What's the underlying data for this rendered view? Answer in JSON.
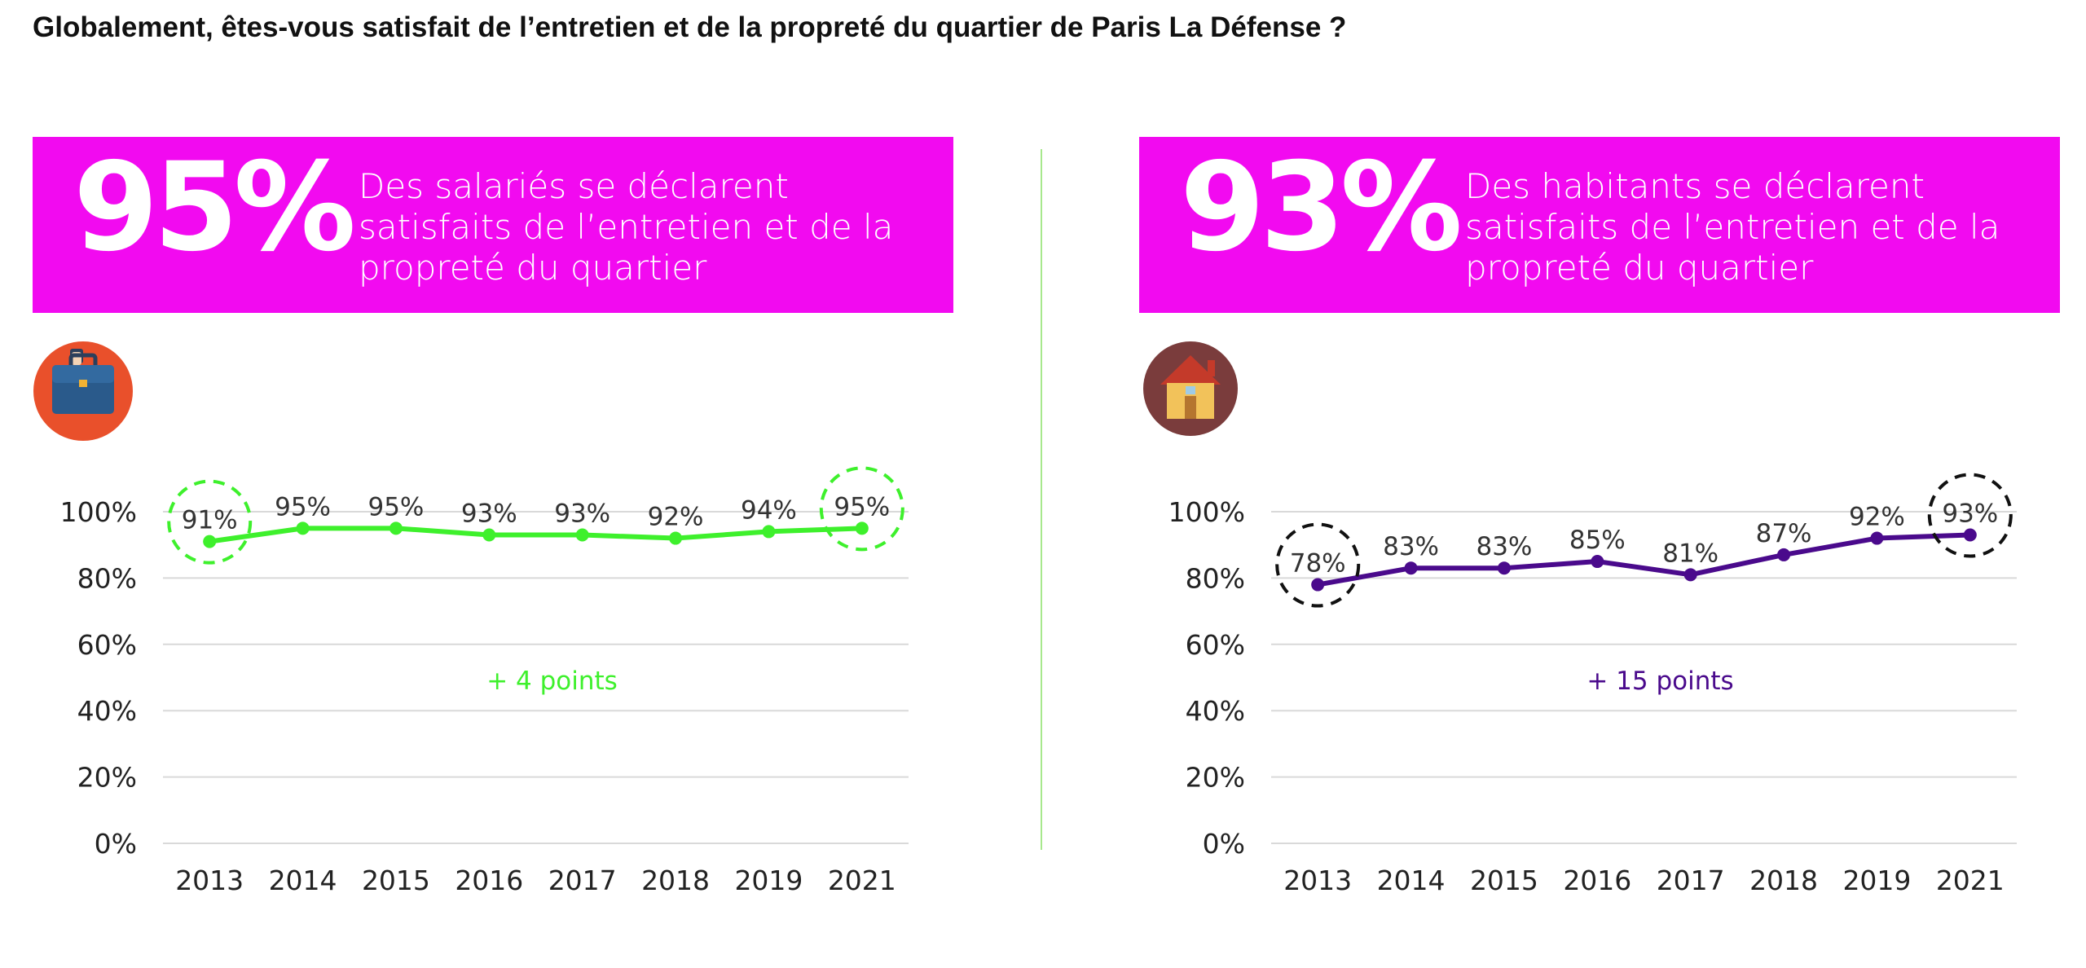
{
  "title": "Globalement, êtes-vous satisfait de l’entretien et de la propreté du quartier de Paris La Défense ?",
  "banners": [
    {
      "percent": "95%",
      "text": "Des salariés se déclarent satisfaits de l’entretien et de la propreté du quartier"
    },
    {
      "percent": "93%",
      "text": "Des habitants se déclarent satisfaits de l’entretien et de la propreté du quartier"
    }
  ],
  "colors": {
    "banner": "#f20af0",
    "employees_line": "#3ef02c",
    "residents_line": "#4a0a8c",
    "divider": "#a7e88d"
  },
  "icons": [
    "briefcase-icon",
    "house-icon"
  ],
  "chart_data": [
    {
      "type": "line",
      "categories": [
        "2013",
        "2014",
        "2015",
        "2016",
        "2017",
        "2018",
        "2019",
        "2021"
      ],
      "series": [
        {
          "values": [
            91,
            95,
            95,
            93,
            93,
            92,
            94,
            95
          ]
        }
      ],
      "data_labels": [
        "91%",
        "95%",
        "95%",
        "93%",
        "93%",
        "92%",
        "94%",
        "95%"
      ],
      "y_ticks": [
        "0%",
        "20%",
        "40%",
        "60%",
        "80%",
        "100%"
      ],
      "ylim": [
        0,
        100
      ],
      "annotation": "+ 4 points",
      "highlighted": [
        "2013",
        "2021"
      ],
      "color": "#3ef02c",
      "highlight_color": "#3ef02c",
      "grid": true
    },
    {
      "type": "line",
      "categories": [
        "2013",
        "2014",
        "2015",
        "2016",
        "2017",
        "2018",
        "2019",
        "2021"
      ],
      "series": [
        {
          "values": [
            78,
            83,
            83,
            85,
            81,
            87,
            92,
            93
          ]
        }
      ],
      "data_labels": [
        "78%",
        "83%",
        "83%",
        "85%",
        "81%",
        "87%",
        "92%",
        "93%"
      ],
      "y_ticks": [
        "0%",
        "20%",
        "40%",
        "60%",
        "80%",
        "100%"
      ],
      "ylim": [
        0,
        100
      ],
      "annotation": "+ 15 points",
      "highlighted": [
        "2013",
        "2021"
      ],
      "color": "#4a0a8c",
      "highlight_color": "#111111",
      "grid": true
    }
  ]
}
